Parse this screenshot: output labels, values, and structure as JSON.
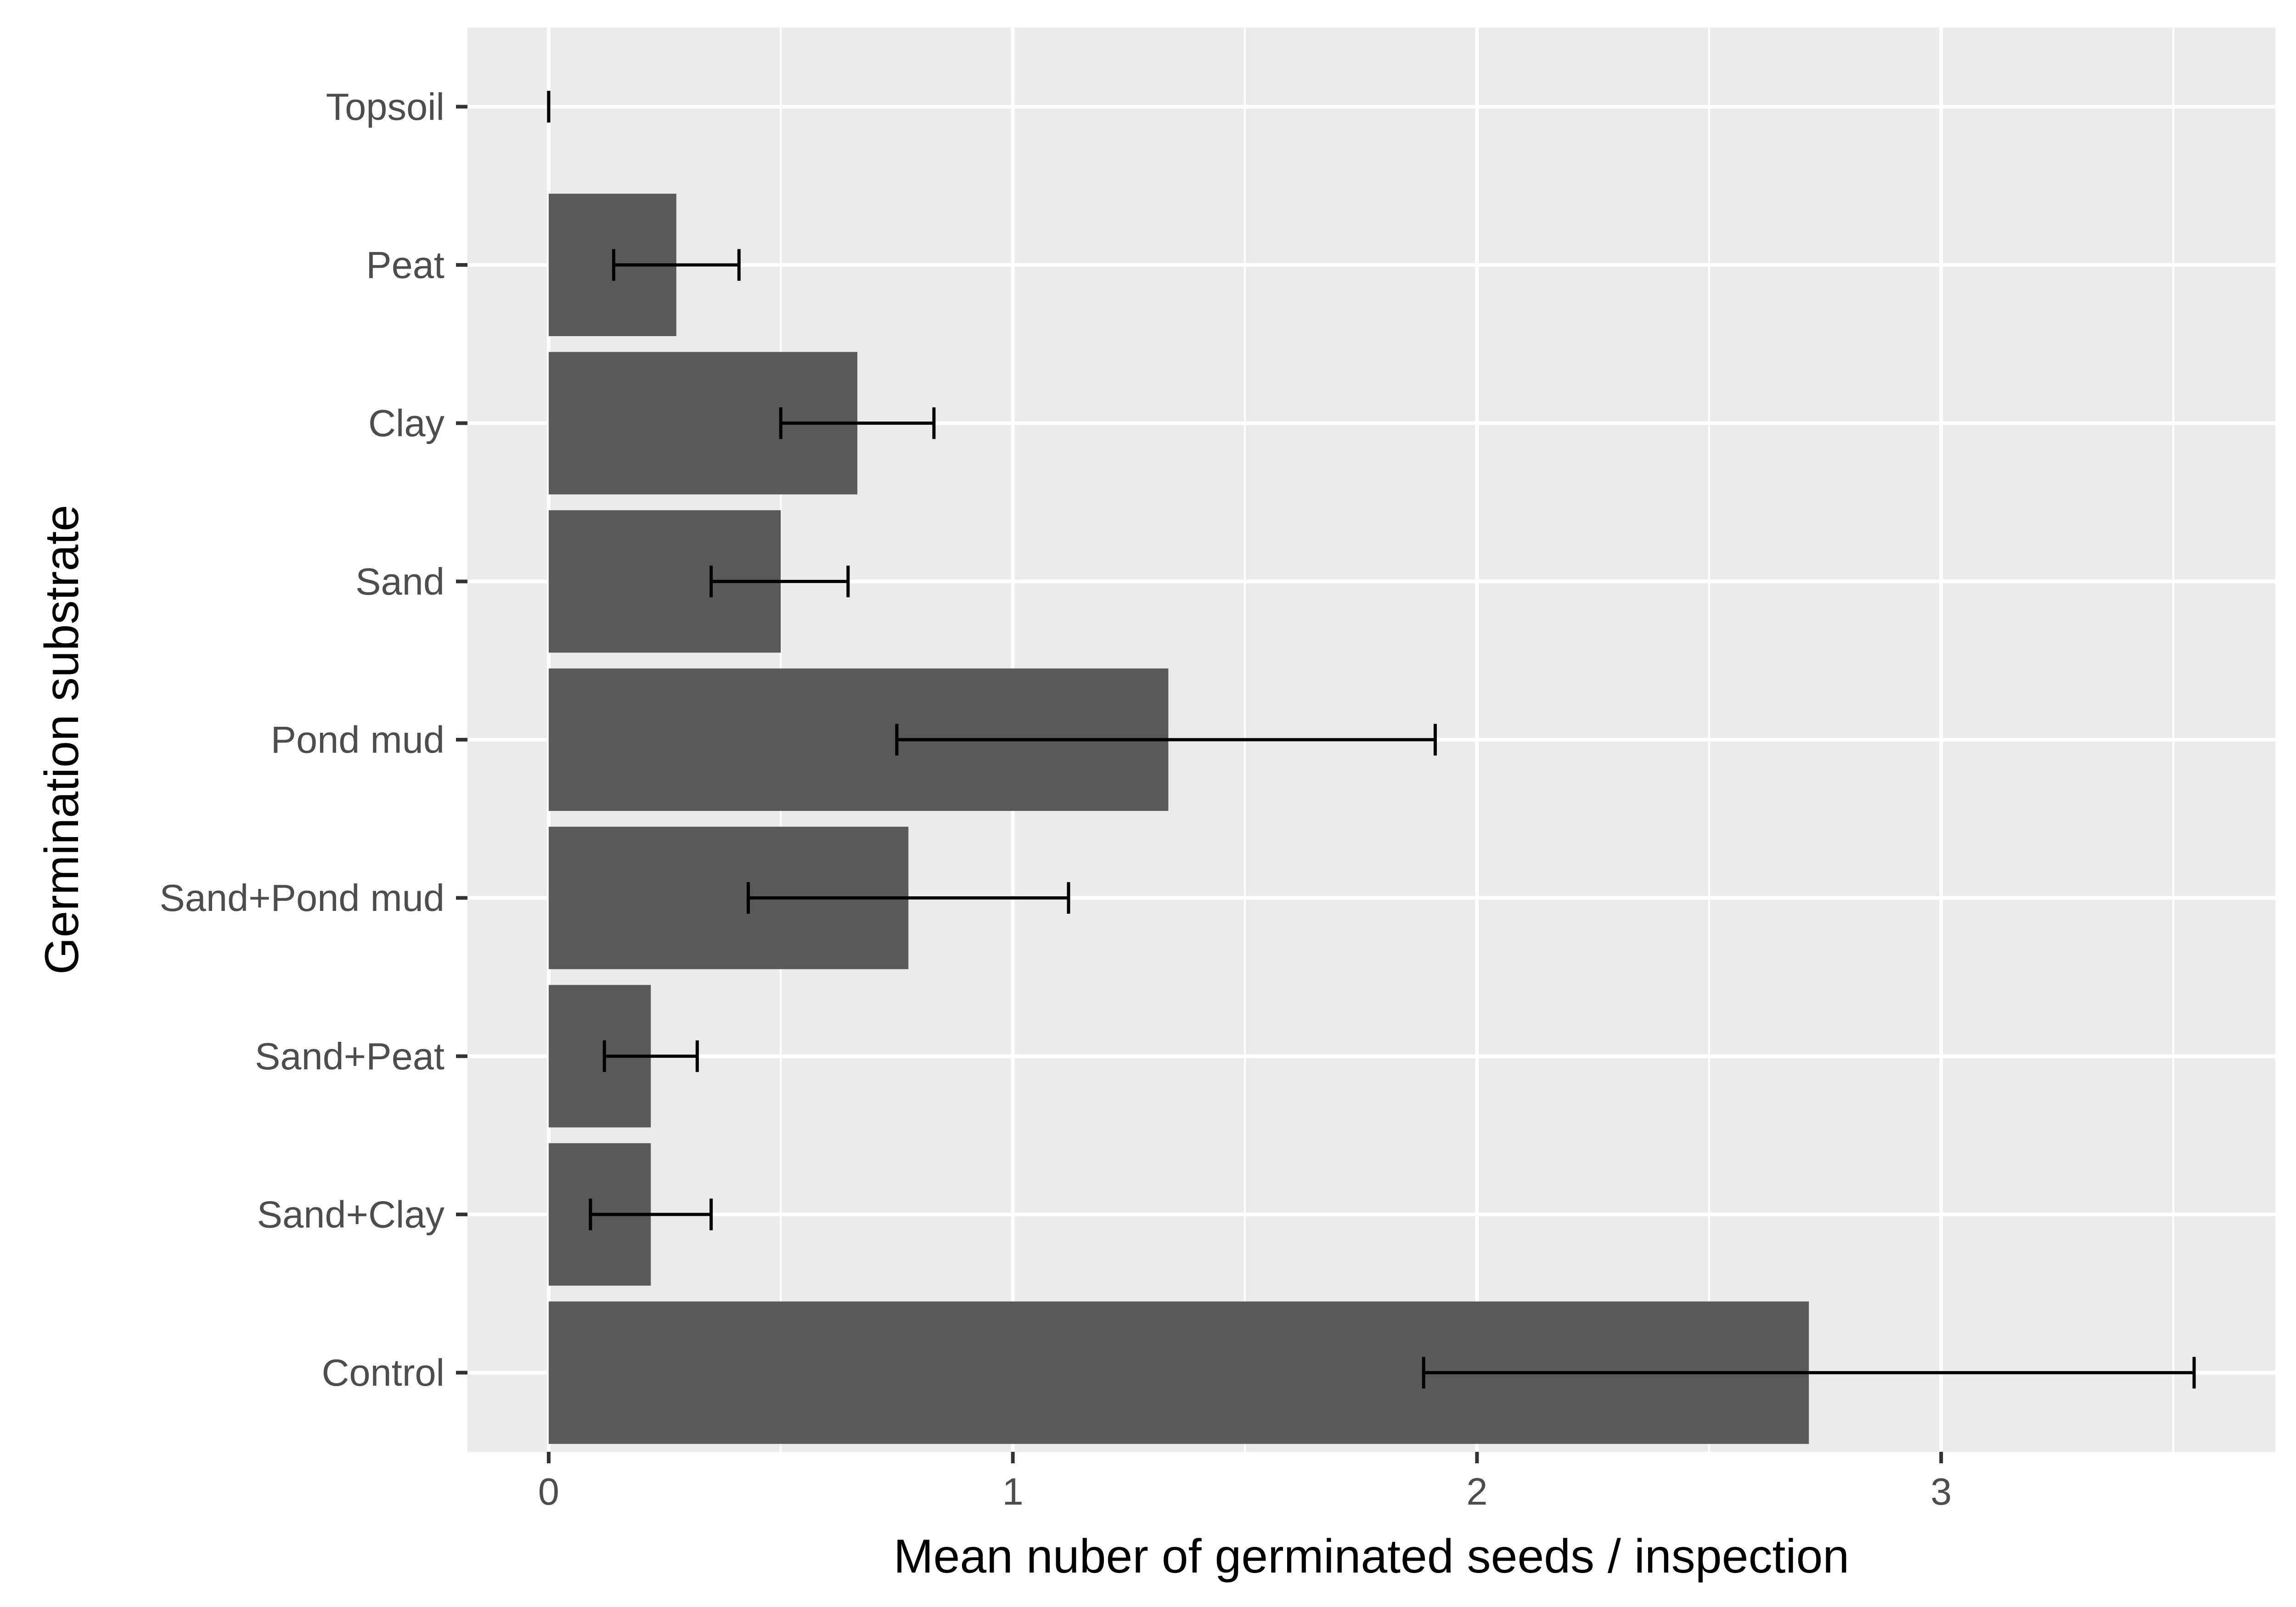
{
  "chart_data": {
    "type": "bar",
    "orientation": "horizontal",
    "categories": [
      "Topsoil",
      "Peat",
      "Clay",
      "Sand",
      "Pond mud",
      "Sand+Pond mud",
      "Sand+Peat",
      "Sand+Clay",
      "Control"
    ],
    "values": [
      0,
      0.275,
      0.665,
      0.5,
      1.335,
      0.775,
      0.22,
      0.22,
      2.715
    ],
    "error_bars": [
      {
        "low": 0,
        "high": 0
      },
      {
        "low": 0.14,
        "high": 0.41
      },
      {
        "low": 0.5,
        "high": 0.83
      },
      {
        "low": 0.35,
        "high": 0.645
      },
      {
        "low": 0.75,
        "high": 1.91
      },
      {
        "low": 0.43,
        "high": 1.12
      },
      {
        "low": 0.12,
        "high": 0.32
      },
      {
        "low": 0.09,
        "high": 0.35
      },
      {
        "low": 1.885,
        "high": 3.545
      }
    ],
    "xlabel": "Mean nuber of germinated seeds / inspection",
    "ylabel": "Germination substrate",
    "xlim": [
      -0.175,
      3.72
    ],
    "x_ticks": [
      "0",
      "1",
      "2",
      "3"
    ],
    "grid": true,
    "legend": "none",
    "colors": {
      "panel_background": "#ebebeb",
      "gridline": "#ffffff",
      "bar_fill": "#595959",
      "error_bar": "#000000",
      "tick_label": "#4d4d4d",
      "axis_title": "#000000"
    }
  }
}
